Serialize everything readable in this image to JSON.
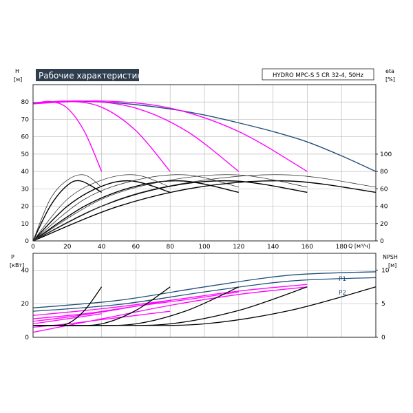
{
  "chart_data": [
    {
      "type": "line",
      "title": "Рабочие характеристики",
      "model_label": "HYDRO MPC-S 5 CR 32-4, 50Hz",
      "ylabel_left": [
        "H",
        "[м]"
      ],
      "ylabel_right": [
        "eta",
        "[%]"
      ],
      "xlabel": "Q [м³/ч]",
      "x_ticks": [
        "0",
        "20",
        "40",
        "60",
        "80",
        "100",
        "120",
        "140",
        "160",
        "180"
      ],
      "y_ticks_left": [
        "0",
        "10",
        "20",
        "30",
        "40",
        "50",
        "60",
        "70",
        "80"
      ],
      "y_ticks_right": [
        "0",
        "20",
        "40",
        "60",
        "80",
        "100"
      ],
      "xlim": [
        0,
        200
      ],
      "ylim": [
        0,
        90
      ],
      "grid": true,
      "series": [
        {
          "color": "#1f4e79",
          "x": [
            0,
            20,
            40,
            60,
            80,
            100,
            120,
            140,
            160,
            180,
            200
          ],
          "y": [
            79.5,
            80.5,
            80.0,
            78.5,
            76.0,
            72.5,
            68.0,
            63.0,
            57.0,
            49.0,
            40.0
          ]
        },
        {
          "color": "#ff00ff",
          "x": [
            0,
            10,
            20,
            30,
            40
          ],
          "y": [
            79.0,
            80.3,
            76.5,
            63.0,
            40.0
          ]
        },
        {
          "color": "#ff00ff",
          "x": [
            0,
            20,
            40,
            60,
            80
          ],
          "y": [
            79.0,
            80.5,
            77.0,
            63.5,
            40.0
          ]
        },
        {
          "color": "#ff00ff",
          "x": [
            0,
            30,
            60,
            90,
            120
          ],
          "y": [
            79.0,
            80.6,
            76.5,
            63.0,
            40.0
          ]
        },
        {
          "color": "#ff00ff",
          "x": [
            0,
            40,
            80,
            120,
            160
          ],
          "y": [
            79.0,
            80.6,
            76.5,
            63.0,
            40.0
          ]
        },
        {
          "color": "#000000",
          "x": [
            0,
            10,
            20,
            28,
            40
          ],
          "y": [
            0,
            20.0,
            32.0,
            34.5,
            28.0
          ]
        },
        {
          "color": "#000000",
          "x": [
            0,
            20,
            40,
            58,
            80
          ],
          "y": [
            0,
            20.0,
            31.5,
            34.5,
            28.0
          ]
        },
        {
          "color": "#000000",
          "x": [
            0,
            30,
            60,
            88,
            120
          ],
          "y": [
            0,
            20.0,
            31.5,
            34.5,
            28.0
          ]
        },
        {
          "color": "#000000",
          "x": [
            0,
            40,
            80,
            118,
            160
          ],
          "y": [
            0,
            20.0,
            31.5,
            34.5,
            28.0
          ]
        },
        {
          "color": "#000000",
          "x": [
            0,
            50,
            100,
            150,
            200
          ],
          "y": [
            0,
            20.0,
            31.5,
            34.5,
            28.0
          ]
        },
        {
          "color": "#333333",
          "x": [
            0,
            10,
            20,
            30,
            40
          ],
          "y": [
            0,
            24.0,
            35.0,
            38.0,
            31.0
          ]
        },
        {
          "color": "#333333",
          "x": [
            0,
            20,
            40,
            60,
            80
          ],
          "y": [
            0,
            24.0,
            35.0,
            38.0,
            31.0
          ]
        },
        {
          "color": "#333333",
          "x": [
            0,
            30,
            60,
            90,
            120
          ],
          "y": [
            0,
            24.0,
            35.0,
            38.0,
            31.0
          ]
        },
        {
          "color": "#333333",
          "x": [
            0,
            40,
            80,
            120,
            160
          ],
          "y": [
            0,
            24.0,
            35.0,
            38.0,
            31.0
          ]
        },
        {
          "color": "#333333",
          "x": [
            0,
            50,
            100,
            150,
            200
          ],
          "y": [
            0,
            24.0,
            35.0,
            38.0,
            31.0
          ]
        }
      ]
    },
    {
      "type": "line",
      "ylabel_left": [
        "P",
        "[кВт]"
      ],
      "ylabel_right": [
        "NPSH",
        "[м]"
      ],
      "y_ticks_left": [
        "0",
        "20",
        "40"
      ],
      "y_ticks_right": [
        "0",
        "5",
        "10"
      ],
      "xlim": [
        0,
        200
      ],
      "ylim_left": [
        0,
        50
      ],
      "ylim_right": [
        0,
        12.5
      ],
      "grid": true,
      "series": [
        {
          "name": "P1",
          "color": "#1f4e79",
          "x": [
            0,
            50,
            100,
            150,
            200
          ],
          "y": [
            17.5,
            22.0,
            30.0,
            37.0,
            39.0
          ]
        },
        {
          "name": "P2",
          "color": "#1f4e79",
          "x": [
            0,
            50,
            100,
            150,
            200
          ],
          "y": [
            15.5,
            19.5,
            27.0,
            33.5,
            35.5
          ]
        },
        {
          "color": "#ff00ff",
          "x": [
            0,
            40,
            80,
            120,
            160
          ],
          "y": [
            3.0,
            11.0,
            19.0,
            25.5,
            30.0
          ]
        },
        {
          "color": "#ff00ff",
          "x": [
            0,
            40,
            80,
            120,
            160
          ],
          "y": [
            13.0,
            17.0,
            22.0,
            27.5,
            31.5
          ]
        },
        {
          "color": "#ff00ff",
          "x": [
            0,
            30,
            60,
            90,
            120
          ],
          "y": [
            11.0,
            14.0,
            18.5,
            22.5,
            27.0
          ]
        },
        {
          "color": "#ff00ff",
          "x": [
            0,
            20,
            40,
            60,
            80
          ],
          "y": [
            9.5,
            12.0,
            15.0,
            18.5,
            22.0
          ]
        },
        {
          "color": "#ff00ff",
          "x": [
            0,
            10,
            20,
            30,
            40
          ],
          "y": [
            8.0,
            9.5,
            11.0,
            12.5,
            14.0
          ]
        },
        {
          "color": "#ff00ff",
          "x": [
            0,
            20,
            40,
            60,
            80
          ],
          "y": [
            6.0,
            8.0,
            10.5,
            13.0,
            15.5
          ]
        },
        {
          "color": "#000000",
          "axis": "right",
          "x": [
            0,
            10,
            20,
            30,
            40
          ],
          "y": [
            1.75,
            1.75,
            2.0,
            4.0,
            7.5
          ]
        },
        {
          "color": "#000000",
          "axis": "right",
          "x": [
            0,
            20,
            40,
            60,
            80
          ],
          "y": [
            1.75,
            1.75,
            2.0,
            4.0,
            7.5
          ]
        },
        {
          "color": "#000000",
          "axis": "right",
          "x": [
            0,
            30,
            60,
            90,
            120
          ],
          "y": [
            1.75,
            1.75,
            2.0,
            4.0,
            7.5
          ]
        },
        {
          "color": "#000000",
          "axis": "right",
          "x": [
            0,
            40,
            80,
            120,
            160
          ],
          "y": [
            1.75,
            1.75,
            2.0,
            4.0,
            7.5
          ]
        },
        {
          "color": "#000000",
          "axis": "right",
          "x": [
            0,
            50,
            100,
            150,
            200
          ],
          "y": [
            1.75,
            1.75,
            2.0,
            4.0,
            7.5
          ]
        }
      ]
    }
  ]
}
